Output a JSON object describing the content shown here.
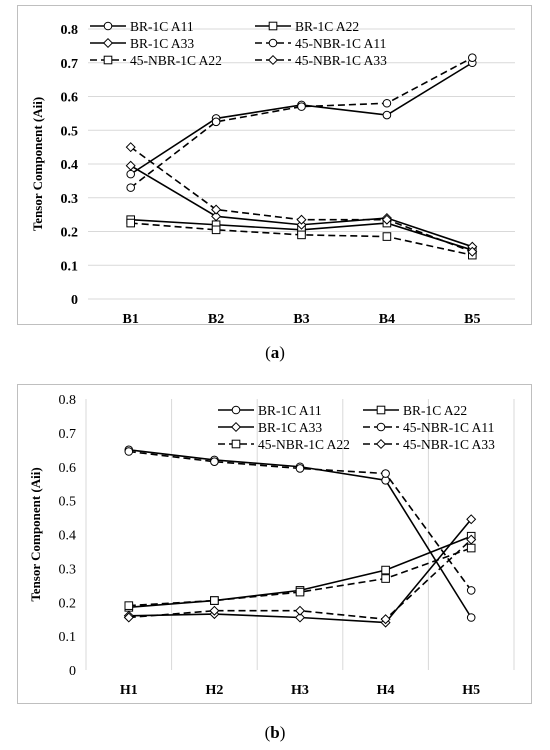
{
  "chart_data": [
    {
      "type": "line",
      "caption": "a",
      "ylabel": "Tensor Component  (Aii)",
      "xlabel": "",
      "categories": [
        "B1",
        "B2",
        "B3",
        "B4",
        "B5"
      ],
      "ylim": [
        0,
        0.8
      ],
      "yticks": [
        "0",
        "0.1",
        "0.2",
        "0.3",
        "0.4",
        "0.5",
        "0.6",
        "0.7",
        "0.8"
      ],
      "grid": "horizontal",
      "legend": "top",
      "series": [
        {
          "name": "BR-1C A11",
          "values": [
            0.37,
            0.535,
            0.575,
            0.545,
            0.7
          ],
          "dash": false,
          "marker": "circle"
        },
        {
          "name": "BR-1C A22",
          "values": [
            0.235,
            0.22,
            0.205,
            0.225,
            0.145
          ],
          "dash": false,
          "marker": "square"
        },
        {
          "name": "BR-1C A33",
          "values": [
            0.395,
            0.245,
            0.22,
            0.24,
            0.155
          ],
          "dash": false,
          "marker": "diamond"
        },
        {
          "name": "45-NBR-1C A11",
          "values": [
            0.33,
            0.525,
            0.57,
            0.58,
            0.715
          ],
          "dash": true,
          "marker": "circle"
        },
        {
          "name": "45-NBR-1C A22",
          "values": [
            0.225,
            0.205,
            0.19,
            0.185,
            0.13
          ],
          "dash": true,
          "marker": "square"
        },
        {
          "name": "45-NBR-1C A33",
          "values": [
            0.45,
            0.265,
            0.235,
            0.235,
            0.14
          ],
          "dash": true,
          "marker": "diamond"
        }
      ]
    },
    {
      "type": "line",
      "caption": "b",
      "ylabel": "Tensor Component  (Aii)",
      "xlabel": "",
      "categories": [
        "H1",
        "H2",
        "H3",
        "H4",
        "H5"
      ],
      "ylim": [
        0,
        0.8
      ],
      "yticks": [
        "0",
        "0.1",
        "0.2",
        "0.3",
        "0.4",
        "0.5",
        "0.6",
        "0.7",
        "0.8"
      ],
      "grid": "vertical",
      "legend": "top",
      "series": [
        {
          "name": "BR-1C A11",
          "values": [
            0.65,
            0.62,
            0.6,
            0.56,
            0.155
          ],
          "dash": false,
          "marker": "circle"
        },
        {
          "name": "BR-1C A22",
          "values": [
            0.185,
            0.205,
            0.235,
            0.295,
            0.395
          ],
          "dash": false,
          "marker": "square"
        },
        {
          "name": "BR-1C A33",
          "values": [
            0.16,
            0.165,
            0.155,
            0.14,
            0.445
          ],
          "dash": false,
          "marker": "diamond"
        },
        {
          "name": "45-NBR-1C A11",
          "values": [
            0.645,
            0.615,
            0.595,
            0.58,
            0.235
          ],
          "dash": true,
          "marker": "circle"
        },
        {
          "name": "45-NBR-1C A22",
          "values": [
            0.19,
            0.205,
            0.23,
            0.27,
            0.36
          ],
          "dash": true,
          "marker": "square"
        },
        {
          "name": "45-NBR-1C A33",
          "values": [
            0.155,
            0.175,
            0.175,
            0.15,
            0.385
          ],
          "dash": true,
          "marker": "diamond"
        }
      ]
    }
  ]
}
